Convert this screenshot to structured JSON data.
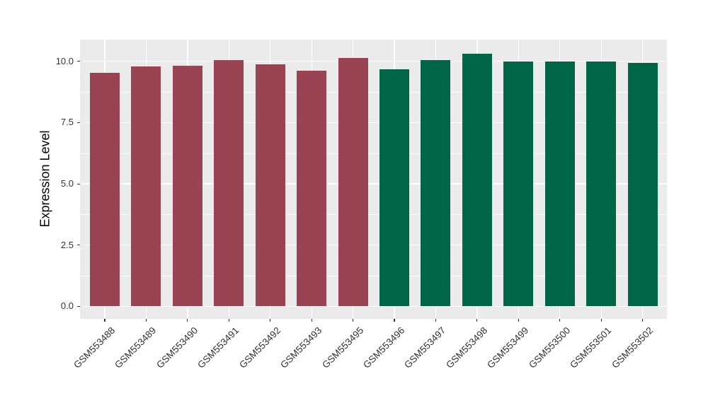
{
  "chart_data": {
    "type": "bar",
    "title": "",
    "xlabel": "",
    "ylabel": "Expression Level",
    "categories": [
      "GSM553488",
      "GSM553489",
      "GSM553490",
      "GSM553491",
      "GSM553492",
      "GSM553493",
      "GSM553495",
      "GSM553496",
      "GSM553497",
      "GSM553498",
      "GSM553499",
      "GSM553500",
      "GSM553501",
      "GSM553502"
    ],
    "values": [
      9.52,
      9.8,
      9.83,
      10.04,
      9.88,
      9.63,
      10.13,
      9.67,
      10.05,
      10.32,
      9.98,
      10.0,
      9.98,
      9.95
    ],
    "groups": [
      "group1",
      "group1",
      "group1",
      "group1",
      "group1",
      "group1",
      "group1",
      "group2",
      "group2",
      "group2",
      "group2",
      "group2",
      "group2",
      "group2"
    ],
    "group_colors": {
      "group1": "#9A4352",
      "group2": "#006647"
    },
    "ylim": [
      0,
      10.9
    ],
    "yticks": [
      0.0,
      2.5,
      5.0,
      7.5,
      10.0
    ],
    "ytick_labels": [
      "0.0",
      "2.5",
      "5.0",
      "7.5",
      "10.0"
    ],
    "minor_yticks": [
      1.25,
      3.75,
      6.25,
      8.75
    ],
    "grid": "horizontal major+minor white lines, vertical major white line at each category center",
    "legend": "none",
    "panel_bg": "#EBEBEB",
    "grid_color": "#FFFFFF",
    "tick_color": "#333333",
    "x_label_rotation_deg": 45
  }
}
